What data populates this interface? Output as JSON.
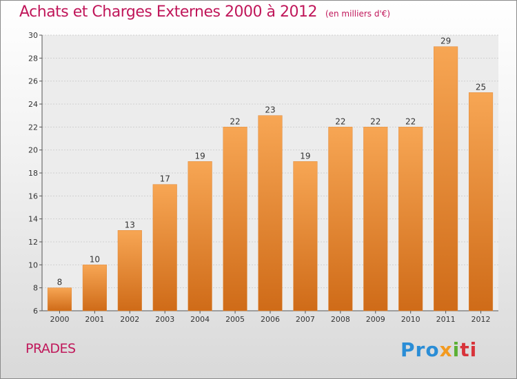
{
  "header": {
    "title": "Achats et Charges Externes 2000 à 2012",
    "unit": "(en milliers d'€)"
  },
  "footer": {
    "location": "PRADES",
    "logo": "Proxiti"
  },
  "colors": {
    "title": "#c0175a",
    "bar_light": "#f7a654",
    "bar_dark": "#cf6b18"
  },
  "chart_data": {
    "type": "bar",
    "title": "Achats et Charges Externes 2000 à 2012",
    "subtitle": "(en milliers d'€)",
    "categories": [
      "2000",
      "2001",
      "2002",
      "2003",
      "2004",
      "2005",
      "2006",
      "2007",
      "2008",
      "2009",
      "2010",
      "2011",
      "2012"
    ],
    "values": [
      8,
      10,
      13,
      17,
      19,
      22,
      23,
      19,
      22,
      22,
      22,
      29,
      25
    ],
    "ylim": [
      6,
      30
    ],
    "yticks": [
      6,
      8,
      10,
      12,
      14,
      16,
      18,
      20,
      22,
      24,
      26,
      28,
      30
    ],
    "grid": true,
    "legend": "none"
  }
}
